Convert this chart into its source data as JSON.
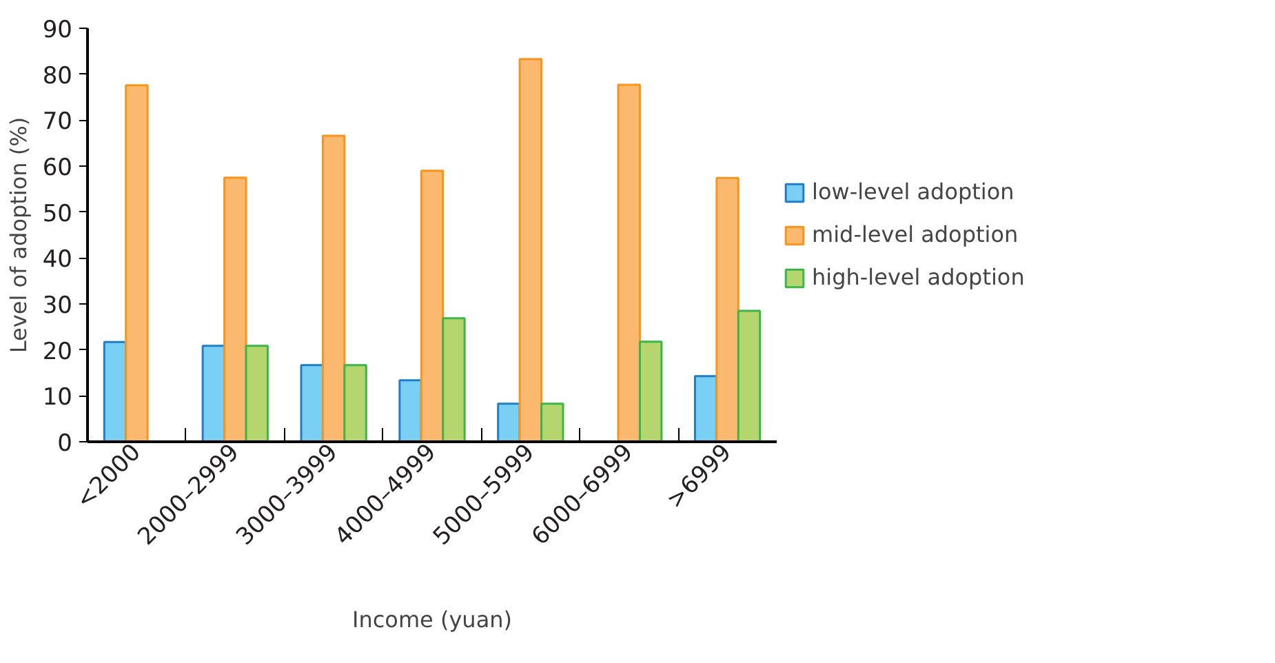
{
  "chart_data": {
    "type": "bar",
    "xlabel": "Income (yuan)",
    "ylabel": "Level of adoption (%)",
    "categories": [
      "<2000",
      "2000–2999",
      "3000–3999",
      "4000–4999",
      "5000–5999",
      "6000–6999",
      ">6999"
    ],
    "series": [
      {
        "name": "low-level adoption",
        "color": "#7ad0f4",
        "values": [
          21.7,
          20.9,
          16.7,
          13.4,
          8.3,
          null,
          14.3
        ]
      },
      {
        "name": "mid-level adoption",
        "color": "#fbb970",
        "values": [
          77.6,
          57.5,
          66.6,
          59.0,
          83.3,
          77.7,
          57.4
        ]
      },
      {
        "name": "high-level adoption",
        "color": "#b5d56e",
        "values": [
          null,
          20.9,
          16.7,
          26.9,
          8.3,
          21.8,
          28.5
        ]
      }
    ],
    "ylim": [
      0,
      90
    ],
    "yticks": [
      0,
      10,
      20,
      30,
      40,
      50,
      60,
      70,
      80,
      90
    ],
    "grid": false,
    "legend": "right"
  }
}
